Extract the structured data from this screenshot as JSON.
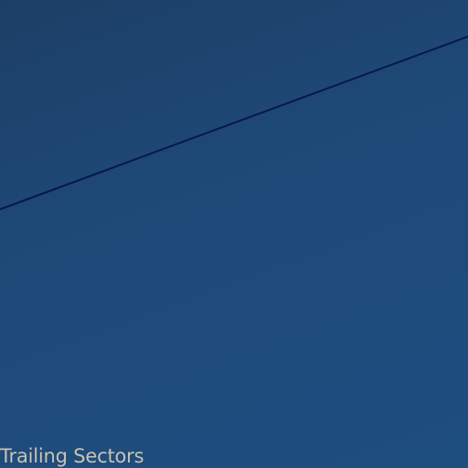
{
  "scene": {
    "caption": "Trailing Sectors",
    "colors": {
      "background_start": "#1d3f66",
      "background_end": "#1e4d80",
      "line": "#0a1650",
      "caption": "#c8c3b0"
    }
  }
}
